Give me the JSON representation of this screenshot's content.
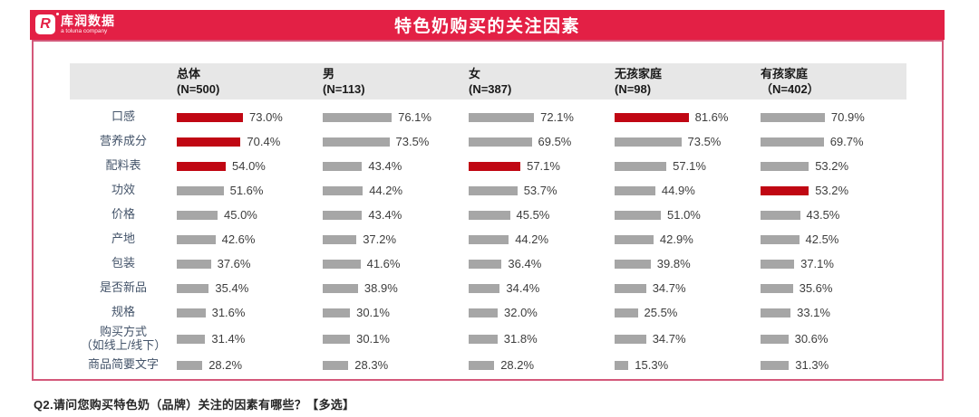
{
  "header": {
    "title": "特色奶购买的关注因素",
    "logo": {
      "mark": "R",
      "brand": "库润数据",
      "subtitle": "a toluna company"
    }
  },
  "chart_data": {
    "type": "bar",
    "title": "特色奶购买的关注因素",
    "orientation": "horizontal",
    "unit": "%",
    "xlim": [
      0,
      100
    ],
    "categories": [
      "口感",
      "营养成分",
      "配料表",
      "功效",
      "价格",
      "产地",
      "包装",
      "是否新品",
      "规格",
      "购买方式\n（如线上/线下）",
      "商品简要文字"
    ],
    "series": [
      {
        "name": "总体",
        "n_label": "(N=500)",
        "values": [
          73.0,
          70.4,
          54.0,
          51.6,
          45.0,
          42.6,
          37.6,
          35.4,
          31.6,
          31.4,
          28.2
        ],
        "highlight": [
          0,
          1,
          2
        ]
      },
      {
        "name": "男",
        "n_label": "(N=113)",
        "values": [
          76.1,
          73.5,
          43.4,
          44.2,
          43.4,
          37.2,
          41.6,
          38.9,
          30.1,
          30.1,
          28.3
        ],
        "highlight": []
      },
      {
        "name": "女",
        "n_label": "(N=387)",
        "values": [
          72.1,
          69.5,
          57.1,
          53.7,
          45.5,
          44.2,
          36.4,
          34.4,
          32.0,
          31.8,
          28.2
        ],
        "highlight": [
          2
        ]
      },
      {
        "name": "无孩家庭",
        "n_label": "(N=98)",
        "values": [
          81.6,
          73.5,
          57.1,
          44.9,
          51.0,
          42.9,
          39.8,
          34.7,
          25.5,
          34.7,
          15.3
        ],
        "highlight": [
          0
        ]
      },
      {
        "name": "有孩家庭",
        "n_label": "（N=402）",
        "values": [
          70.9,
          69.7,
          53.2,
          53.2,
          43.5,
          42.5,
          37.1,
          35.6,
          33.1,
          30.6,
          31.3
        ],
        "highlight": [
          3
        ]
      }
    ],
    "colors": {
      "highlight": "#c00713",
      "default": "#a6a6a6"
    },
    "legend": "none",
    "grid": false
  },
  "footer": {
    "question": "Q2.请问您购买特色奶（品牌）关注的因素有哪些？【多选】"
  }
}
